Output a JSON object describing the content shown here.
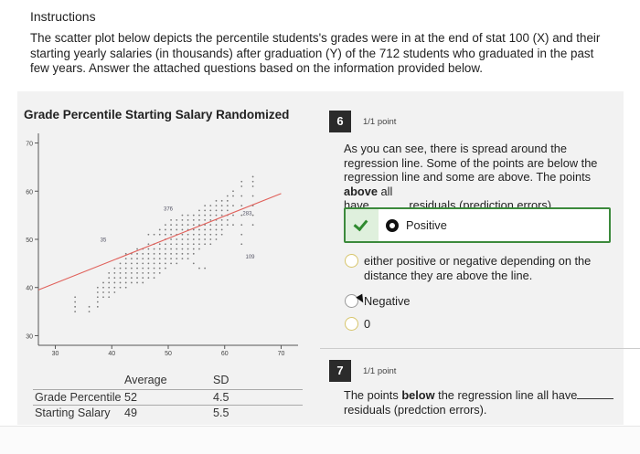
{
  "instructions": {
    "title": "Instructions",
    "body": "The scatter plot below depicts the percentile students's grades were in at the end of stat 100 (X) and their starting yearly salaries (in thousands) after graduation (Y) of the 712 students who graduated in the past few years. Answer the attached questions based on the information provided below."
  },
  "chart": {
    "title": "Grade Percentile Starting Salary Randomized"
  },
  "chart_data": {
    "type": "scatter",
    "title": "Grade Percentile Starting Salary Randomized",
    "xlabel": "",
    "ylabel": "",
    "x_ticks": [
      "30",
      "40",
      "50",
      "60",
      "70"
    ],
    "y_ticks": [
      "30",
      "40",
      "50",
      "60",
      "70"
    ],
    "xlim": [
      27,
      73
    ],
    "ylim": [
      28,
      72
    ],
    "grid": false,
    "regression_line": {
      "x": [
        27,
        70
      ],
      "y": [
        39.5,
        59.5
      ],
      "color": "#e0605a"
    },
    "point_color": "#7a7a7a",
    "annotations": [
      {
        "text": "376",
        "x": 50,
        "y": 56
      },
      {
        "text": "35",
        "x": 38.5,
        "y": 49.5
      },
      {
        "text": "283",
        "x": 64,
        "y": 55
      },
      {
        "text": "109",
        "x": 64.5,
        "y": 46
      }
    ],
    "series": [
      {
        "points": [
          [
            33.5,
            38
          ],
          [
            33.5,
            37
          ],
          [
            33.5,
            36
          ],
          [
            33.5,
            35
          ],
          [
            36,
            36
          ],
          [
            36,
            35
          ],
          [
            37.5,
            40
          ],
          [
            37.5,
            39
          ],
          [
            37.5,
            38
          ],
          [
            37.5,
            37
          ],
          [
            37.5,
            36
          ],
          [
            38.5,
            41
          ],
          [
            38.5,
            40
          ],
          [
            38.5,
            39
          ],
          [
            38.5,
            38
          ],
          [
            39.5,
            43
          ],
          [
            39.5,
            42
          ],
          [
            39.5,
            41
          ],
          [
            39.5,
            40
          ],
          [
            39.5,
            39
          ],
          [
            39.5,
            38
          ],
          [
            40.5,
            44
          ],
          [
            40.5,
            43
          ],
          [
            40.5,
            42
          ],
          [
            40.5,
            41
          ],
          [
            40.5,
            40
          ],
          [
            40.5,
            39
          ],
          [
            41.5,
            45
          ],
          [
            41.5,
            44
          ],
          [
            41.5,
            43
          ],
          [
            41.5,
            42
          ],
          [
            41.5,
            41
          ],
          [
            41.5,
            40
          ],
          [
            42.5,
            47
          ],
          [
            42.5,
            46
          ],
          [
            42.5,
            45
          ],
          [
            42.5,
            44
          ],
          [
            42.5,
            43
          ],
          [
            42.5,
            42
          ],
          [
            42.5,
            41
          ],
          [
            42.5,
            40
          ],
          [
            43.5,
            47
          ],
          [
            43.5,
            46
          ],
          [
            43.5,
            45
          ],
          [
            43.5,
            44
          ],
          [
            43.5,
            43
          ],
          [
            43.5,
            42
          ],
          [
            43.5,
            41
          ],
          [
            44.5,
            48
          ],
          [
            44.5,
            47
          ],
          [
            44.5,
            46
          ],
          [
            44.5,
            45
          ],
          [
            44.5,
            44
          ],
          [
            44.5,
            43
          ],
          [
            44.5,
            42
          ],
          [
            44.5,
            41
          ],
          [
            45.5,
            48
          ],
          [
            45.5,
            47
          ],
          [
            45.5,
            46
          ],
          [
            45.5,
            45
          ],
          [
            45.5,
            44
          ],
          [
            45.5,
            43
          ],
          [
            45.5,
            42
          ],
          [
            45.5,
            41
          ],
          [
            46.5,
            51
          ],
          [
            46.5,
            49
          ],
          [
            46.5,
            48
          ],
          [
            46.5,
            47
          ],
          [
            46.5,
            46
          ],
          [
            46.5,
            45
          ],
          [
            46.5,
            44
          ],
          [
            46.5,
            43
          ],
          [
            46.5,
            42
          ],
          [
            47.5,
            51
          ],
          [
            47.5,
            49
          ],
          [
            47.5,
            48
          ],
          [
            47.5,
            47
          ],
          [
            47.5,
            46
          ],
          [
            47.5,
            45
          ],
          [
            47.5,
            44
          ],
          [
            47.5,
            43
          ],
          [
            47.5,
            42
          ],
          [
            48.5,
            52
          ],
          [
            48.5,
            51
          ],
          [
            48.5,
            49
          ],
          [
            48.5,
            48
          ],
          [
            48.5,
            47
          ],
          [
            48.5,
            46
          ],
          [
            48.5,
            45
          ],
          [
            48.5,
            44
          ],
          [
            48.5,
            43
          ],
          [
            49.5,
            53
          ],
          [
            49.5,
            52
          ],
          [
            49.5,
            51
          ],
          [
            49.5,
            50
          ],
          [
            49.5,
            49
          ],
          [
            49.5,
            48
          ],
          [
            49.5,
            47
          ],
          [
            49.5,
            46
          ],
          [
            49.5,
            45
          ],
          [
            49.5,
            44
          ],
          [
            50.5,
            54
          ],
          [
            50.5,
            53
          ],
          [
            50.5,
            52
          ],
          [
            50.5,
            51
          ],
          [
            50.5,
            50
          ],
          [
            50.5,
            49
          ],
          [
            50.5,
            48
          ],
          [
            50.5,
            47
          ],
          [
            50.5,
            46
          ],
          [
            50.5,
            45
          ],
          [
            51.5,
            54
          ],
          [
            51.5,
            53
          ],
          [
            51.5,
            52
          ],
          [
            51.5,
            51
          ],
          [
            51.5,
            50
          ],
          [
            51.5,
            49
          ],
          [
            51.5,
            48
          ],
          [
            51.5,
            47
          ],
          [
            51.5,
            46
          ],
          [
            51.5,
            45
          ],
          [
            52.5,
            55
          ],
          [
            52.5,
            54
          ],
          [
            52.5,
            53
          ],
          [
            52.5,
            52
          ],
          [
            52.5,
            51
          ],
          [
            52.5,
            50
          ],
          [
            52.5,
            49
          ],
          [
            52.5,
            48
          ],
          [
            52.5,
            47
          ],
          [
            52.5,
            46
          ],
          [
            53.5,
            55
          ],
          [
            53.5,
            54
          ],
          [
            53.5,
            53
          ],
          [
            53.5,
            52
          ],
          [
            53.5,
            51
          ],
          [
            53.5,
            50
          ],
          [
            53.5,
            49
          ],
          [
            53.5,
            48
          ],
          [
            53.5,
            47
          ],
          [
            53.5,
            46
          ],
          [
            54.5,
            55
          ],
          [
            54.5,
            54
          ],
          [
            54.5,
            53
          ],
          [
            54.5,
            52
          ],
          [
            54.5,
            51
          ],
          [
            54.5,
            50
          ],
          [
            54.5,
            49
          ],
          [
            54.5,
            48
          ],
          [
            54.5,
            47
          ],
          [
            54.5,
            45
          ],
          [
            55.5,
            56
          ],
          [
            55.5,
            55
          ],
          [
            55.5,
            54
          ],
          [
            55.5,
            53
          ],
          [
            55.5,
            52
          ],
          [
            55.5,
            51
          ],
          [
            55.5,
            50
          ],
          [
            55.5,
            49
          ],
          [
            55.5,
            48
          ],
          [
            55.5,
            44
          ],
          [
            56.5,
            57
          ],
          [
            56.5,
            56
          ],
          [
            56.5,
            55
          ],
          [
            56.5,
            54
          ],
          [
            56.5,
            53
          ],
          [
            56.5,
            52
          ],
          [
            56.5,
            51
          ],
          [
            56.5,
            50
          ],
          [
            56.5,
            49
          ],
          [
            56.5,
            44
          ],
          [
            57.5,
            57
          ],
          [
            57.5,
            56
          ],
          [
            57.5,
            55
          ],
          [
            57.5,
            54
          ],
          [
            57.5,
            53
          ],
          [
            57.5,
            52
          ],
          [
            57.5,
            51
          ],
          [
            57.5,
            50
          ],
          [
            57.5,
            49
          ],
          [
            58.5,
            58
          ],
          [
            58.5,
            57
          ],
          [
            58.5,
            56
          ],
          [
            58.5,
            55
          ],
          [
            58.5,
            54
          ],
          [
            58.5,
            53
          ],
          [
            58.5,
            52
          ],
          [
            58.5,
            51
          ],
          [
            58.5,
            50
          ],
          [
            59.5,
            58
          ],
          [
            59.5,
            57
          ],
          [
            59.5,
            56
          ],
          [
            59.5,
            55
          ],
          [
            59.5,
            54
          ],
          [
            59.5,
            53
          ],
          [
            59.5,
            52
          ],
          [
            59.5,
            51
          ],
          [
            60.5,
            59
          ],
          [
            60.5,
            58
          ],
          [
            60.5,
            57
          ],
          [
            60.5,
            56
          ],
          [
            60.5,
            55
          ],
          [
            60.5,
            54
          ],
          [
            60.5,
            53
          ],
          [
            61.5,
            60
          ],
          [
            61.5,
            59
          ],
          [
            61.5,
            57
          ],
          [
            61.5,
            55
          ],
          [
            61.5,
            53
          ],
          [
            63,
            62
          ],
          [
            63,
            61
          ],
          [
            63,
            59
          ],
          [
            63,
            57
          ],
          [
            63,
            55
          ],
          [
            63,
            53
          ],
          [
            63,
            51
          ],
          [
            63,
            49
          ],
          [
            65,
            63
          ],
          [
            65,
            62
          ],
          [
            65,
            61
          ],
          [
            65,
            59
          ],
          [
            65,
            57
          ],
          [
            65,
            55
          ],
          [
            65,
            53
          ]
        ]
      }
    ]
  },
  "stats": {
    "header": "Average",
    "header_sd": "SD",
    "rows": [
      {
        "label": "Grade Percentile",
        "avg": "52",
        "sd": "4.5"
      },
      {
        "label": "Starting Salary",
        "avg": "49",
        "sd": "5.5"
      }
    ]
  },
  "q6": {
    "number": "6",
    "points": "1/1 point",
    "text_1": "As you can see, there is spread around the regression line. Some of the points are below the regression line and some are above. The points ",
    "text_bold": "above",
    "text_2": " all",
    "text_3a": "have",
    "text_3b": "residuals (prediction errors).",
    "selected": "Positive",
    "options": [
      "either positive or negative depending on the distance they are above the line.",
      "Negative",
      "0"
    ]
  },
  "q7": {
    "number": "7",
    "points": "1/1 point",
    "text_1": "The points ",
    "text_bold": "below",
    "text_2": " the regression line all have",
    "text_3": "residuals (predction errors)."
  },
  "colors": {
    "correct_border": "#3c8a3c",
    "regression": "#e0605a",
    "question_badge": "#2b2b2b"
  }
}
